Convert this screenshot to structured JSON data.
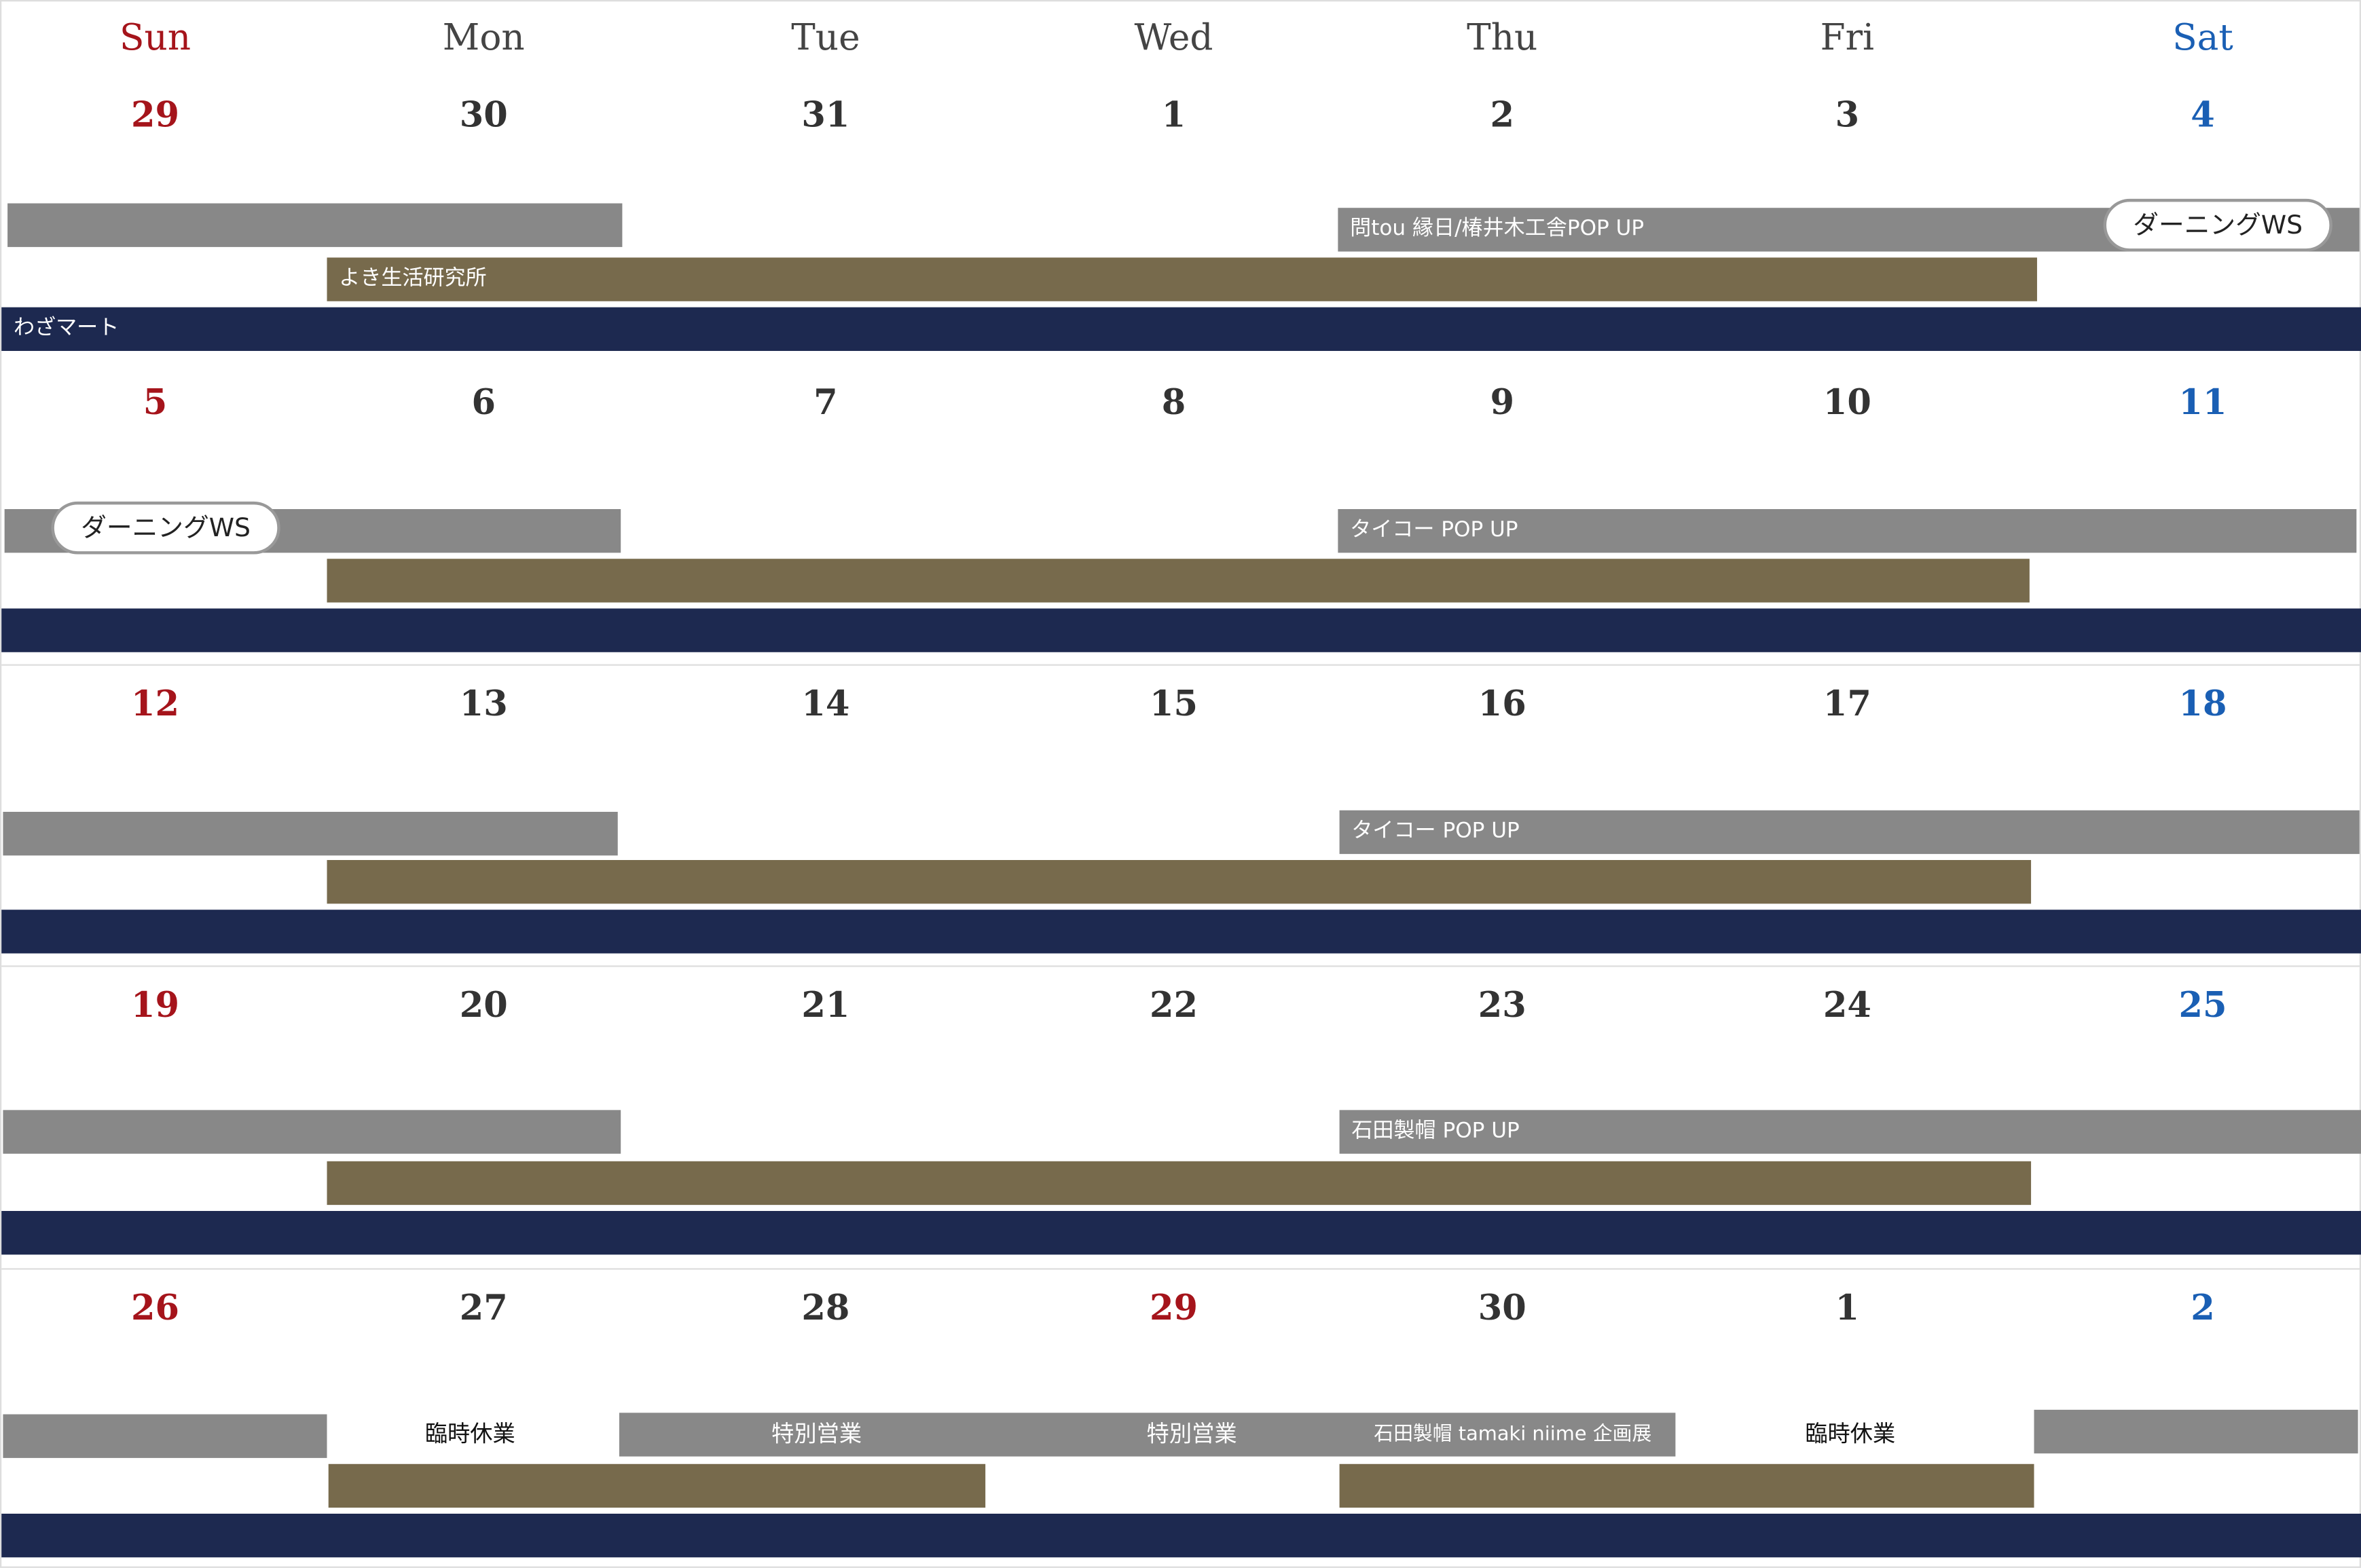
{
  "weekdays": [
    "Sun",
    "Mon",
    "Tue",
    "Wed",
    "Thu",
    "Fri",
    "Sat"
  ],
  "colors": {
    "sunday": "#a5141b",
    "saturday": "#1a5fb4",
    "gray_bar": "#888888",
    "olive_bar": "#776a4c",
    "navy_bar": "#1d2950"
  },
  "weeks": [
    {
      "dates": [
        {
          "d": "29",
          "c": "red"
        },
        {
          "d": "30"
        },
        {
          "d": "31"
        },
        {
          "d": "1"
        },
        {
          "d": "2"
        },
        {
          "d": "3"
        },
        {
          "d": "4",
          "c": "blue"
        }
      ],
      "events": {
        "popup": "問tou 縁日/椿井木工舎POP UP",
        "pill": "ダーニングWS",
        "olive": "よき生活研究所",
        "navy": "わざマート"
      }
    },
    {
      "dates": [
        {
          "d": "5",
          "c": "red"
        },
        {
          "d": "6"
        },
        {
          "d": "7"
        },
        {
          "d": "8"
        },
        {
          "d": "9"
        },
        {
          "d": "10"
        },
        {
          "d": "11",
          "c": "blue"
        }
      ],
      "events": {
        "pill": "ダーニングWS",
        "popup": "タイコー POP UP"
      }
    },
    {
      "dates": [
        {
          "d": "12",
          "c": "red"
        },
        {
          "d": "13"
        },
        {
          "d": "14"
        },
        {
          "d": "15"
        },
        {
          "d": "16"
        },
        {
          "d": "17"
        },
        {
          "d": "18",
          "c": "blue"
        }
      ],
      "events": {
        "popup": "タイコー POP UP"
      }
    },
    {
      "dates": [
        {
          "d": "19",
          "c": "red"
        },
        {
          "d": "20"
        },
        {
          "d": "21"
        },
        {
          "d": "22"
        },
        {
          "d": "23"
        },
        {
          "d": "24"
        },
        {
          "d": "25",
          "c": "blue"
        }
      ],
      "events": {
        "popup": "石田製帽 POP UP"
      }
    },
    {
      "dates": [
        {
          "d": "26",
          "c": "red"
        },
        {
          "d": "27"
        },
        {
          "d": "28"
        },
        {
          "d": "29",
          "c": "red"
        },
        {
          "d": "30"
        },
        {
          "d": "1"
        },
        {
          "d": "2",
          "c": "blue"
        }
      ],
      "events": {
        "closed_mon": "臨時休業",
        "special_tue": "特別営業",
        "special_wed": "特別営業",
        "exhibition": "石田製帽 tamaki niime 企画展",
        "closed_fri": "臨時休業"
      }
    }
  ]
}
